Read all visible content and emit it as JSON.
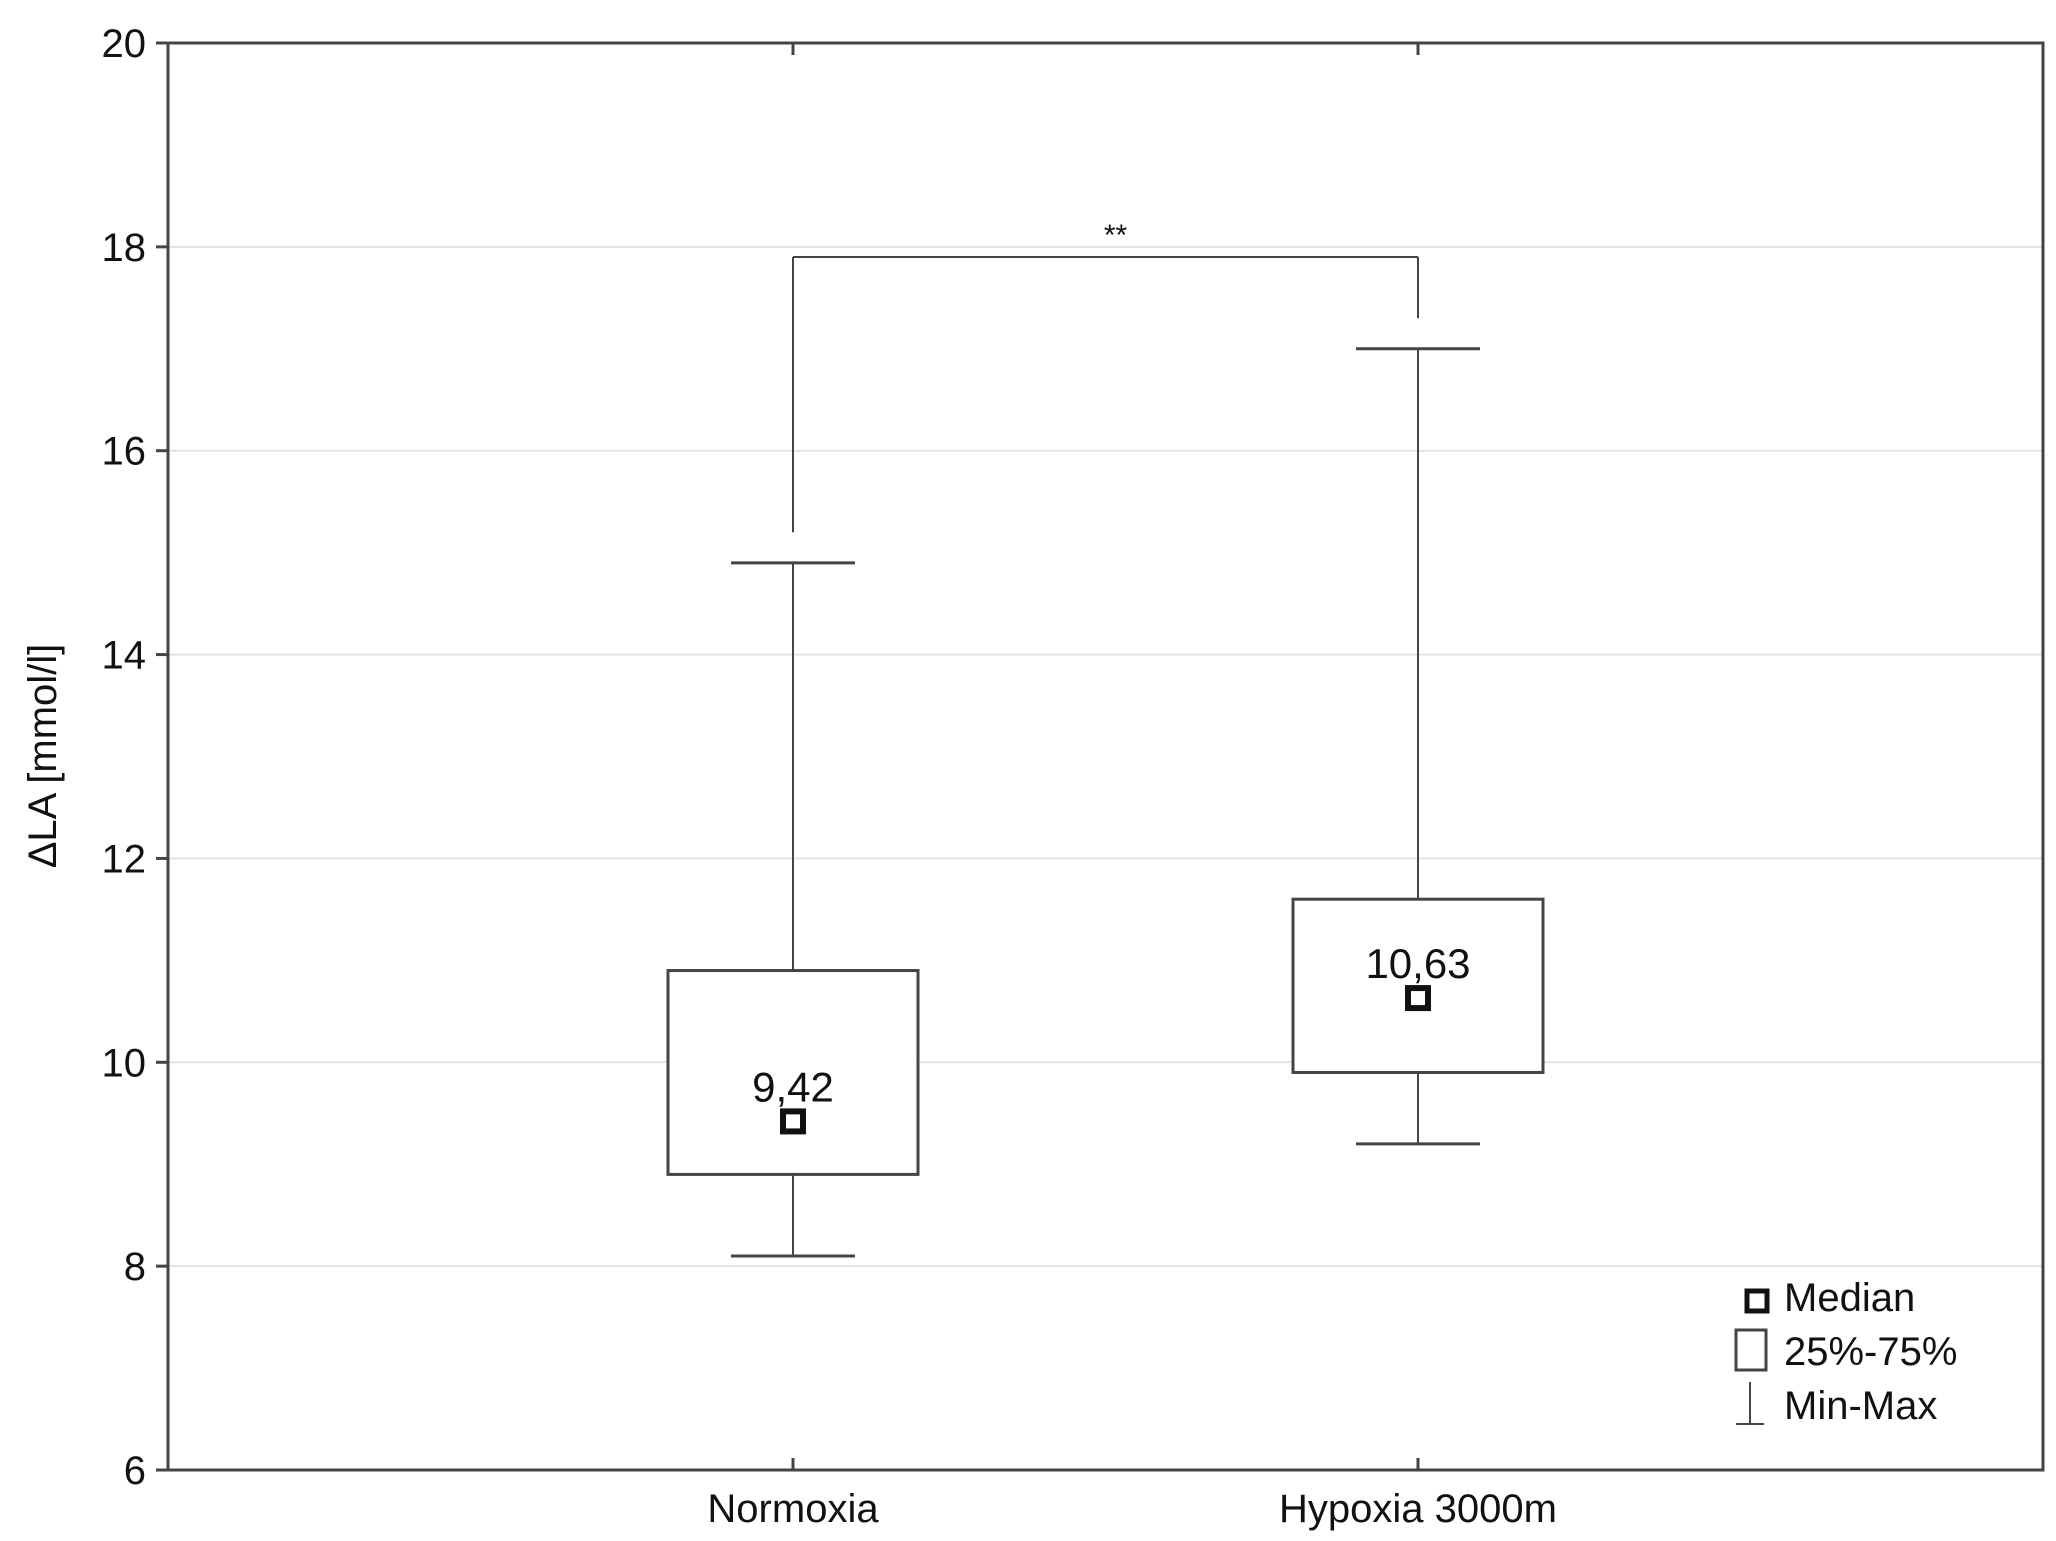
{
  "chart_data": {
    "type": "box",
    "title": "",
    "xlabel": "",
    "ylabel": "ΔLA [mmol/l]",
    "ylim": [
      6,
      20
    ],
    "yticks": [
      6,
      8,
      10,
      12,
      14,
      16,
      18,
      20
    ],
    "ytick_labels": [
      "6",
      "8",
      "10",
      "12",
      "14",
      "16",
      "18",
      "20"
    ],
    "grid": true,
    "categories": [
      "Normoxia",
      "Hypoxia 3000m"
    ],
    "boxes": [
      {
        "category": "Normoxia",
        "min": 8.1,
        "q1": 8.9,
        "median": 9.42,
        "q3": 10.9,
        "max": 14.9,
        "median_label": "9,42"
      },
      {
        "category": "Hypoxia 3000m",
        "min": 9.2,
        "q1": 9.9,
        "median": 10.63,
        "q3": 11.6,
        "max": 17.0,
        "median_label": "10,63"
      }
    ],
    "significance": {
      "label": "**",
      "between": [
        "Normoxia",
        "Hypoxia 3000m"
      ],
      "y": 17.9,
      "left_drop_to": 15.2,
      "right_drop_to": 17.3
    },
    "legend": {
      "position": "bottom-right",
      "items": [
        {
          "symbol": "median-marker",
          "label": "Median"
        },
        {
          "symbol": "box",
          "label": "25%-75%"
        },
        {
          "symbol": "whisker",
          "label": "Min-Max"
        }
      ]
    },
    "colors": {
      "background": "#ffffff",
      "axis": "#444444",
      "grid": "#e3e3e3",
      "box_stroke": "#444444",
      "median_marker": "#111111",
      "text": "#111111"
    }
  }
}
